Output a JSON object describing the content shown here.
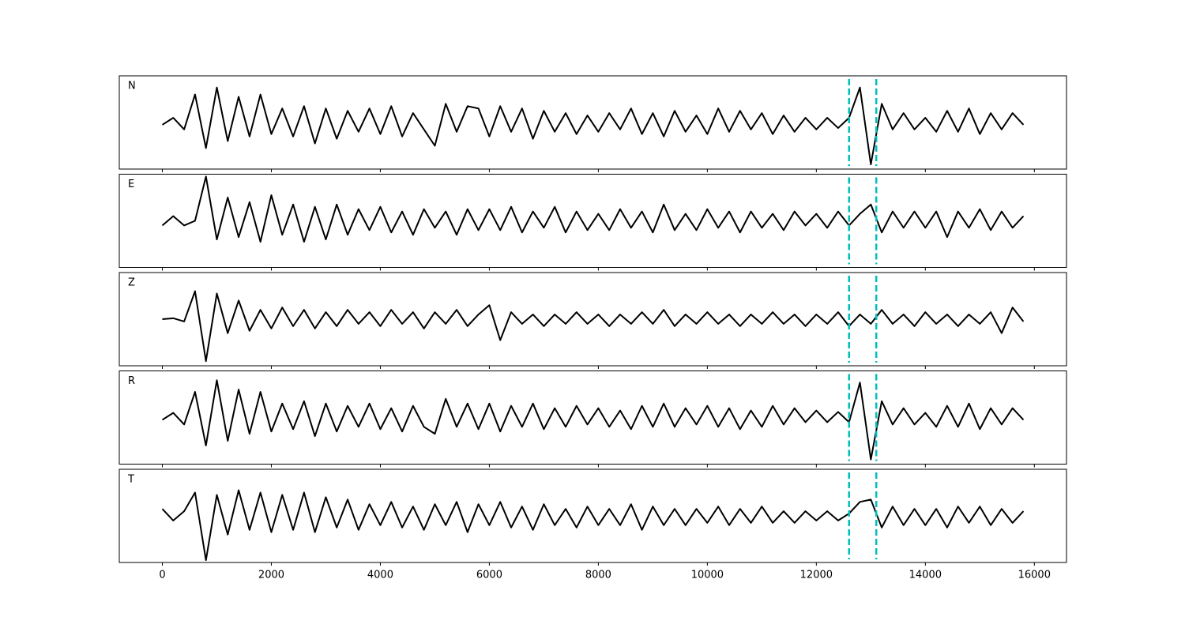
{
  "chart_data": {
    "type": "line",
    "layout": "stacked",
    "x": [
      0,
      200,
      400,
      600,
      800,
      1000,
      1200,
      1400,
      1600,
      1800,
      2000,
      2200,
      2400,
      2600,
      2800,
      3000,
      3200,
      3400,
      3600,
      3800,
      4000,
      4200,
      4400,
      4600,
      4800,
      5000,
      5200,
      5400,
      5600,
      5800,
      6000,
      6200,
      6400,
      6600,
      6800,
      7000,
      7200,
      7400,
      7600,
      7800,
      8000,
      8200,
      8400,
      8600,
      8800,
      9000,
      9200,
      9400,
      9600,
      9800,
      10000,
      10200,
      10400,
      10600,
      10800,
      11000,
      11200,
      11400,
      11600,
      11800,
      12000,
      12200,
      12400,
      12600,
      12800,
      13000,
      13200,
      13400,
      13600,
      13800,
      14000,
      14200,
      14400,
      14600,
      14800,
      15000,
      15200,
      15400,
      15600,
      15800
    ],
    "series": [
      {
        "name": "N",
        "color": "#000000",
        "values": [
          -0.05,
          0.1,
          -0.15,
          0.6,
          -0.55,
          0.75,
          -0.4,
          0.55,
          -0.3,
          0.6,
          -0.25,
          0.3,
          -0.3,
          0.35,
          -0.45,
          0.3,
          -0.35,
          0.25,
          -0.2,
          0.3,
          -0.25,
          0.35,
          -0.3,
          0.2,
          -0.15,
          -0.5,
          0.4,
          -0.2,
          0.35,
          0.3,
          -0.3,
          0.35,
          -0.2,
          0.3,
          -0.35,
          0.25,
          -0.2,
          0.2,
          -0.25,
          0.15,
          -0.2,
          0.2,
          -0.15,
          0.3,
          -0.25,
          0.2,
          -0.3,
          0.25,
          -0.2,
          0.15,
          -0.25,
          0.3,
          -0.2,
          0.25,
          -0.15,
          0.2,
          -0.25,
          0.15,
          -0.2,
          0.1,
          -0.15,
          0.1,
          -0.12,
          0.1,
          0.75,
          -0.9,
          0.4,
          -0.15,
          0.2,
          -0.15,
          0.1,
          -0.2,
          0.25,
          -0.2,
          0.3,
          -0.25,
          0.2,
          -0.15,
          0.2,
          -0.05
        ]
      },
      {
        "name": "E",
        "color": "#000000",
        "values": [
          -0.1,
          0.1,
          -0.1,
          0.0,
          0.95,
          -0.4,
          0.5,
          -0.35,
          0.4,
          -0.45,
          0.55,
          -0.3,
          0.35,
          -0.45,
          0.3,
          -0.4,
          0.35,
          -0.3,
          0.25,
          -0.2,
          0.3,
          -0.25,
          0.2,
          -0.3,
          0.25,
          -0.15,
          0.2,
          -0.3,
          0.25,
          -0.2,
          0.25,
          -0.2,
          0.3,
          -0.25,
          0.2,
          -0.15,
          0.3,
          -0.25,
          0.2,
          -0.2,
          0.15,
          -0.2,
          0.25,
          -0.15,
          0.2,
          -0.25,
          0.35,
          -0.2,
          0.15,
          -0.2,
          0.25,
          -0.15,
          0.2,
          -0.25,
          0.2,
          -0.15,
          0.15,
          -0.2,
          0.2,
          -0.1,
          0.15,
          -0.15,
          0.2,
          -0.1,
          0.15,
          0.35,
          -0.25,
          0.2,
          -0.15,
          0.2,
          -0.15,
          0.2,
          -0.35,
          0.2,
          -0.15,
          0.25,
          -0.2,
          0.2,
          -0.15,
          0.1
        ]
      },
      {
        "name": "Z",
        "color": "#000000",
        "values": [
          0.0,
          0.02,
          -0.05,
          0.6,
          -0.9,
          0.55,
          -0.3,
          0.4,
          -0.25,
          0.2,
          -0.2,
          0.25,
          -0.15,
          0.2,
          -0.2,
          0.15,
          -0.15,
          0.2,
          -0.1,
          0.15,
          -0.15,
          0.2,
          -0.1,
          0.15,
          -0.2,
          0.15,
          -0.1,
          0.2,
          -0.15,
          0.1,
          0.3,
          -0.45,
          0.15,
          -0.1,
          0.1,
          -0.15,
          0.1,
          -0.1,
          0.15,
          -0.1,
          0.1,
          -0.15,
          0.1,
          -0.1,
          0.15,
          -0.1,
          0.2,
          -0.15,
          0.1,
          -0.1,
          0.15,
          -0.1,
          0.1,
          -0.15,
          0.1,
          -0.1,
          0.15,
          -0.1,
          0.1,
          -0.15,
          0.1,
          -0.1,
          0.15,
          -0.15,
          0.1,
          -0.1,
          0.2,
          -0.1,
          0.1,
          -0.15,
          0.15,
          -0.1,
          0.1,
          -0.15,
          0.1,
          -0.1,
          0.15,
          -0.3,
          0.25,
          -0.05
        ]
      },
      {
        "name": "R",
        "color": "#000000",
        "values": [
          -0.05,
          0.1,
          -0.15,
          0.55,
          -0.6,
          0.8,
          -0.5,
          0.6,
          -0.35,
          0.55,
          -0.3,
          0.3,
          -0.25,
          0.35,
          -0.4,
          0.3,
          -0.3,
          0.25,
          -0.2,
          0.3,
          -0.25,
          0.2,
          -0.3,
          0.25,
          -0.2,
          -0.35,
          0.4,
          -0.2,
          0.3,
          -0.25,
          0.3,
          -0.3,
          0.25,
          -0.2,
          0.3,
          -0.25,
          0.2,
          -0.2,
          0.25,
          -0.15,
          0.2,
          -0.2,
          0.15,
          -0.25,
          0.25,
          -0.2,
          0.3,
          -0.2,
          0.2,
          -0.15,
          0.25,
          -0.2,
          0.2,
          -0.25,
          0.15,
          -0.2,
          0.25,
          -0.15,
          0.2,
          -0.1,
          0.15,
          -0.1,
          0.12,
          -0.1,
          0.75,
          -0.9,
          0.35,
          -0.15,
          0.2,
          -0.15,
          0.1,
          -0.2,
          0.25,
          -0.2,
          0.3,
          -0.25,
          0.2,
          -0.15,
          0.2,
          -0.05
        ]
      },
      {
        "name": "T",
        "color": "#000000",
        "values": [
          0.15,
          -0.1,
          0.1,
          0.5,
          -0.95,
          0.45,
          -0.4,
          0.55,
          -0.3,
          0.5,
          -0.35,
          0.45,
          -0.3,
          0.5,
          -0.35,
          0.4,
          -0.25,
          0.35,
          -0.3,
          0.25,
          -0.2,
          0.3,
          -0.25,
          0.2,
          -0.3,
          0.25,
          -0.2,
          0.3,
          -0.35,
          0.25,
          -0.2,
          0.3,
          -0.25,
          0.2,
          -0.3,
          0.25,
          -0.2,
          0.15,
          -0.25,
          0.2,
          -0.2,
          0.15,
          -0.2,
          0.25,
          -0.3,
          0.2,
          -0.2,
          0.15,
          -0.2,
          0.15,
          -0.15,
          0.2,
          -0.2,
          0.15,
          -0.15,
          0.2,
          -0.15,
          0.1,
          -0.15,
          0.1,
          -0.1,
          0.1,
          -0.1,
          0.05,
          0.3,
          0.35,
          -0.25,
          0.2,
          -0.2,
          0.15,
          -0.2,
          0.15,
          -0.25,
          0.2,
          -0.15,
          0.2,
          -0.2,
          0.15,
          -0.15,
          0.1
        ]
      }
    ],
    "xlim": [
      -790,
      16590
    ],
    "xticks": [
      0,
      2000,
      4000,
      6000,
      8000,
      10000,
      12000,
      14000,
      16000
    ],
    "ylim": [
      -1,
      1
    ],
    "vlines": [
      12600,
      13100
    ],
    "vline_color": "#00bfbf"
  }
}
